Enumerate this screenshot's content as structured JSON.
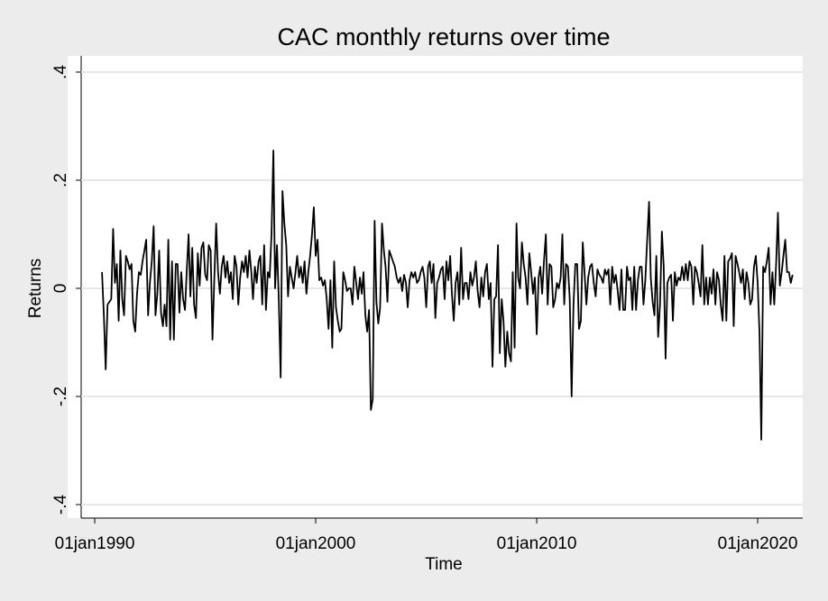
{
  "chart_data": {
    "type": "line",
    "title": "CAC monthly returns over time",
    "x_label": "Time",
    "y_label": "Returns",
    "color": "#000000",
    "grid": true,
    "xlim": [
      "1989-05-22",
      "2022-01-15"
    ],
    "xticks": [
      {
        "value": "1990-01-01",
        "label": "01jan1990"
      },
      {
        "value": "2000-01-01",
        "label": "01jan2000"
      },
      {
        "value": "2010-01-01",
        "label": "01jan2010"
      },
      {
        "value": "2020-01-01",
        "label": "01jan2020"
      }
    ],
    "ylim": [
      -0.425,
      0.43
    ],
    "yticks": [
      {
        "value": -0.4,
        "label": "-.4"
      },
      {
        "value": -0.2,
        "label": "-.2"
      },
      0,
      {
        "value": 0.2,
        "label": ".2"
      },
      {
        "value": 0.4,
        "label": ".4"
      }
    ],
    "x": [
      "1990-05-01",
      "1990-06-01",
      "1990-07-01",
      "1990-08-01",
      "1990-09-01",
      "1990-10-01",
      "1990-11-01",
      "1990-12-01",
      "1991-01-01",
      "1991-02-01",
      "1991-03-01",
      "1991-04-01",
      "1991-05-01",
      "1991-06-01",
      "1991-07-01",
      "1991-08-01",
      "1991-09-01",
      "1991-10-01",
      "1991-11-01",
      "1991-12-01",
      "1992-01-01",
      "1992-02-01",
      "1992-03-01",
      "1992-04-01",
      "1992-05-01",
      "1992-06-01",
      "1992-07-01",
      "1992-08-01",
      "1992-09-01",
      "1992-10-01",
      "1992-11-01",
      "1992-12-01",
      "1993-01-01",
      "1993-02-01",
      "1993-03-01",
      "1993-04-01",
      "1993-05-01",
      "1993-06-01",
      "1993-07-01",
      "1993-08-01",
      "1993-09-01",
      "1993-10-01",
      "1993-11-01",
      "1993-12-01",
      "1994-01-01",
      "1994-02-01",
      "1994-03-01",
      "1994-04-01",
      "1994-05-01",
      "1994-06-01",
      "1994-07-01",
      "1994-08-01",
      "1994-09-01",
      "1994-10-01",
      "1994-11-01",
      "1994-12-01",
      "1995-01-01",
      "1995-02-01",
      "1995-03-01",
      "1995-04-01",
      "1995-05-01",
      "1995-06-01",
      "1995-07-01",
      "1995-08-01",
      "1995-09-01",
      "1995-10-01",
      "1995-11-01",
      "1995-12-01",
      "1996-01-01",
      "1996-02-01",
      "1996-03-01",
      "1996-04-01",
      "1996-05-01",
      "1996-06-01",
      "1996-07-01",
      "1996-08-01",
      "1996-09-01",
      "1996-10-01",
      "1996-11-01",
      "1996-12-01",
      "1997-01-01",
      "1997-02-01",
      "1997-03-01",
      "1997-04-01",
      "1997-05-01",
      "1997-06-01",
      "1997-07-01",
      "1997-08-01",
      "1997-09-01",
      "1997-10-01",
      "1997-11-01",
      "1997-12-01",
      "1998-01-01",
      "1998-02-01",
      "1998-03-01",
      "1998-04-01",
      "1998-05-01",
      "1998-06-01",
      "1998-07-01",
      "1998-08-01",
      "1998-09-01",
      "1998-10-01",
      "1998-11-01",
      "1998-12-01",
      "1999-01-01",
      "1999-02-01",
      "1999-03-01",
      "1999-04-01",
      "1999-05-01",
      "1999-06-01",
      "1999-07-01",
      "1999-08-01",
      "1999-09-01",
      "1999-10-01",
      "1999-11-01",
      "1999-12-01",
      "2000-01-01",
      "2000-02-01",
      "2000-03-01",
      "2000-04-01",
      "2000-05-01",
      "2000-06-01",
      "2000-07-01",
      "2000-08-01",
      "2000-09-01",
      "2000-10-01",
      "2000-11-01",
      "2000-12-01",
      "2001-01-01",
      "2001-02-01",
      "2001-03-01",
      "2001-04-01",
      "2001-05-01",
      "2001-06-01",
      "2001-07-01",
      "2001-08-01",
      "2001-09-01",
      "2001-10-01",
      "2001-11-01",
      "2001-12-01",
      "2002-01-01",
      "2002-02-01",
      "2002-03-01",
      "2002-04-01",
      "2002-05-01",
      "2002-06-01",
      "2002-07-01",
      "2002-08-01",
      "2002-09-01",
      "2002-10-01",
      "2002-11-01",
      "2002-12-01",
      "2003-01-01",
      "2003-02-01",
      "2003-03-01",
      "2003-04-01",
      "2003-05-01",
      "2003-06-01",
      "2003-07-01",
      "2003-08-01",
      "2003-09-01",
      "2003-10-01",
      "2003-11-01",
      "2003-12-01",
      "2004-01-01",
      "2004-02-01",
      "2004-03-01",
      "2004-04-01",
      "2004-05-01",
      "2004-06-01",
      "2004-07-01",
      "2004-08-01",
      "2004-09-01",
      "2004-10-01",
      "2004-11-01",
      "2004-12-01",
      "2005-01-01",
      "2005-02-01",
      "2005-03-01",
      "2005-04-01",
      "2005-05-01",
      "2005-06-01",
      "2005-07-01",
      "2005-08-01",
      "2005-09-01",
      "2005-10-01",
      "2005-11-01",
      "2005-12-01",
      "2006-01-01",
      "2006-02-01",
      "2006-03-01",
      "2006-04-01",
      "2006-05-01",
      "2006-06-01",
      "2006-07-01",
      "2006-08-01",
      "2006-09-01",
      "2006-10-01",
      "2006-11-01",
      "2006-12-01",
      "2007-01-01",
      "2007-02-01",
      "2007-03-01",
      "2007-04-01",
      "2007-05-01",
      "2007-06-01",
      "2007-07-01",
      "2007-08-01",
      "2007-09-01",
      "2007-10-01",
      "2007-11-01",
      "2007-12-01",
      "2008-01-01",
      "2008-02-01",
      "2008-03-01",
      "2008-04-01",
      "2008-05-01",
      "2008-06-01",
      "2008-07-01",
      "2008-08-01",
      "2008-09-01",
      "2008-10-01",
      "2008-11-01",
      "2008-12-01",
      "2009-01-01",
      "2009-02-01",
      "2009-03-01",
      "2009-04-01",
      "2009-05-01",
      "2009-06-01",
      "2009-07-01",
      "2009-08-01",
      "2009-09-01",
      "2009-10-01",
      "2009-11-01",
      "2009-12-01",
      "2010-01-01",
      "2010-02-01",
      "2010-03-01",
      "2010-04-01",
      "2010-05-01",
      "2010-06-01",
      "2010-07-01",
      "2010-08-01",
      "2010-09-01",
      "2010-10-01",
      "2010-11-01",
      "2010-12-01",
      "2011-01-01",
      "2011-02-01",
      "2011-03-01",
      "2011-04-01",
      "2011-05-01",
      "2011-06-01",
      "2011-07-01",
      "2011-08-01",
      "2011-09-01",
      "2011-10-01",
      "2011-11-01",
      "2011-12-01",
      "2012-01-01",
      "2012-02-01",
      "2012-03-01",
      "2012-04-01",
      "2012-05-01",
      "2012-06-01",
      "2012-07-01",
      "2012-08-01",
      "2012-09-01",
      "2012-10-01",
      "2012-11-01",
      "2012-12-01",
      "2013-01-01",
      "2013-02-01",
      "2013-03-01",
      "2013-04-01",
      "2013-05-01",
      "2013-06-01",
      "2013-07-01",
      "2013-08-01",
      "2013-09-01",
      "2013-10-01",
      "2013-11-01",
      "2013-12-01",
      "2014-01-01",
      "2014-02-01",
      "2014-03-01",
      "2014-04-01",
      "2014-05-01",
      "2014-06-01",
      "2014-07-01",
      "2014-08-01",
      "2014-09-01",
      "2014-10-01",
      "2014-11-01",
      "2014-12-01",
      "2015-01-01",
      "2015-02-01",
      "2015-03-01",
      "2015-04-01",
      "2015-05-01",
      "2015-06-01",
      "2015-07-01",
      "2015-08-01",
      "2015-09-01",
      "2015-10-01",
      "2015-11-01",
      "2015-12-01",
      "2016-01-01",
      "2016-02-01",
      "2016-03-01",
      "2016-04-01",
      "2016-05-01",
      "2016-06-01",
      "2016-07-01",
      "2016-08-01",
      "2016-09-01",
      "2016-10-01",
      "2016-11-01",
      "2016-12-01",
      "2017-01-01",
      "2017-02-01",
      "2017-03-01",
      "2017-04-01",
      "2017-05-01",
      "2017-06-01",
      "2017-07-01",
      "2017-08-01",
      "2017-09-01",
      "2017-10-01",
      "2017-11-01",
      "2017-12-01",
      "2018-01-01",
      "2018-02-01",
      "2018-03-01",
      "2018-04-01",
      "2018-05-01",
      "2018-06-01",
      "2018-07-01",
      "2018-08-01",
      "2018-09-01",
      "2018-10-01",
      "2018-11-01",
      "2018-12-01",
      "2019-01-01",
      "2019-02-01",
      "2019-03-01",
      "2019-04-01",
      "2019-05-01",
      "2019-06-01",
      "2019-07-01",
      "2019-08-01",
      "2019-09-01",
      "2019-10-01",
      "2019-11-01",
      "2019-12-01",
      "2020-01-01",
      "2020-02-01",
      "2020-03-01",
      "2020-04-01",
      "2020-05-01",
      "2020-06-01",
      "2020-07-01",
      "2020-08-01",
      "2020-09-01",
      "2020-10-01",
      "2020-11-01",
      "2020-12-01",
      "2021-01-01",
      "2021-02-01",
      "2021-03-01",
      "2021-04-01",
      "2021-05-01",
      "2021-06-01",
      "2021-07-01",
      "2021-08-01"
    ],
    "values": [
      0.03,
      -0.05,
      -0.15,
      -0.03,
      -0.025,
      -0.02,
      0.11,
      0.01,
      0.045,
      -0.06,
      0.07,
      -0.02,
      -0.05,
      0.06,
      0.05,
      0.035,
      0.045,
      -0.06,
      -0.08,
      -0.01,
      0.03,
      0.025,
      0.05,
      0.07,
      0.09,
      -0.05,
      0.01,
      0.05,
      0.115,
      -0.05,
      -0.01,
      0.07,
      -0.045,
      -0.07,
      -0.03,
      -0.07,
      0.09,
      -0.095,
      0.05,
      -0.095,
      0.045,
      0.045,
      -0.045,
      0.03,
      -0.02,
      -0.04,
      0.03,
      0.1,
      -0.015,
      0.075,
      -0.03,
      -0.055,
      0.065,
      0.005,
      0.075,
      0.085,
      0.025,
      0.015,
      0.08,
      0.07,
      -0.095,
      0.02,
      0.12,
      0.03,
      -0.01,
      0.04,
      0.06,
      0.02,
      0.05,
      0.01,
      0.03,
      -0.02,
      0.06,
      0.04,
      -0.03,
      0.02,
      0.05,
      0.03,
      0.06,
      0.02,
      0.07,
      0.03,
      -0.02,
      0.04,
      0.01,
      0.05,
      0.06,
      -0.03,
      0.08,
      -0.04,
      0.03,
      0.02,
      0.1,
      0.255,
      0.0,
      0.08,
      -0.02,
      -0.165,
      0.18,
      0.12,
      0.08,
      -0.015,
      0.04,
      0.02,
      0.0,
      0.03,
      0.06,
      0.02,
      0.04,
      0.01,
      0.05,
      -0.01,
      0.03,
      0.06,
      0.1,
      0.15,
      0.06,
      0.09,
      0.015,
      0.02,
      0.005,
      0.015,
      -0.02,
      -0.075,
      0.015,
      -0.11,
      0.05,
      -0.035,
      -0.06,
      -0.08,
      -0.075,
      0.03,
      0.015,
      -0.005,
      0.0,
      0.0,
      -0.03,
      0.04,
      0.01,
      -0.02,
      0.02,
      -0.01,
      0.03,
      -0.05,
      -0.08,
      -0.04,
      -0.225,
      -0.205,
      0.125,
      -0.025,
      -0.065,
      -0.035,
      0.12,
      0.07,
      0.04,
      -0.025,
      0.07,
      0.06,
      0.05,
      0.04,
      0.02,
      0.01,
      0.02,
      -0.005,
      0.025,
      0.01,
      -0.035,
      0.015,
      0.03,
      0.02,
      0.03,
      0.01,
      0.015,
      0.03,
      0.04,
      0.02,
      -0.035,
      0.04,
      0.05,
      0.01,
      0.045,
      -0.055,
      0.01,
      0.02,
      0.035,
      0.04,
      -0.02,
      0.05,
      0.015,
      0.06,
      -0.01,
      -0.06,
      0.01,
      0.03,
      -0.03,
      0.075,
      -0.02,
      0.01,
      0.01,
      -0.02,
      0.03,
      0.005,
      0.02,
      0.05,
      -0.005,
      -0.035,
      0.02,
      -0.015,
      0.03,
      0.045,
      -0.02,
      0.01,
      -0.145,
      -0.02,
      -0.015,
      0.08,
      -0.12,
      -0.02,
      -0.06,
      -0.145,
      -0.08,
      -0.12,
      -0.135,
      0.03,
      -0.11,
      0.12,
      0.02,
      0.0,
      0.085,
      0.045,
      0.02,
      -0.03,
      0.065,
      0.03,
      -0.01,
      0.02,
      -0.085,
      0.02,
      0.04,
      -0.01,
      0.05,
      0.1,
      -0.03,
      0.045,
      0.04,
      -0.035,
      -0.02,
      0.01,
      0.0,
      0.02,
      0.1,
      -0.03,
      0.045,
      0.04,
      -0.02,
      -0.2,
      -0.03,
      0.045,
      0.045,
      -0.075,
      -0.06,
      0.085,
      0.03,
      -0.03,
      0.02,
      0.04,
      0.045,
      0.01,
      -0.015,
      0.035,
      0.025,
      0.02,
      0.01,
      0.035,
      0.025,
      0.035,
      -0.03,
      0.04,
      0.01,
      0.025,
      -0.005,
      -0.04,
      0.035,
      -0.04,
      -0.04,
      0.04,
      0.015,
      0.02,
      -0.04,
      0.04,
      -0.04,
      0.015,
      0.04,
      0.04,
      -0.03,
      0.015,
      0.09,
      0.16,
      0.02,
      -0.025,
      -0.05,
      0.06,
      -0.09,
      -0.03,
      0.105,
      0.04,
      -0.13,
      0.01,
      0.02,
      0.025,
      -0.06,
      0.03,
      0.005,
      0.02,
      0.015,
      0.04,
      0.015,
      0.045,
      0.015,
      0.05,
      0.04,
      -0.03,
      0.04,
      0.03,
      0.01,
      -0.015,
      0.08,
      -0.03,
      0.02,
      -0.03,
      0.02,
      -0.01,
      0.035,
      -0.03,
      0.03,
      0.015,
      -0.03,
      -0.06,
      0.06,
      -0.06,
      0.05,
      0.055,
      0.065,
      -0.07,
      0.06,
      0.045,
      0.03,
      0.01,
      0.035,
      -0.02,
      0.03,
      0.01,
      -0.03,
      -0.02,
      0.04,
      0.06,
      0.01,
      -0.085,
      -0.28,
      0.04,
      0.03,
      0.05,
      0.075,
      -0.03,
      0.03,
      -0.03,
      0.045,
      0.14,
      0.005,
      0.03,
      0.06,
      0.09,
      0.03,
      0.03,
      0.01,
      0.025
    ]
  }
}
